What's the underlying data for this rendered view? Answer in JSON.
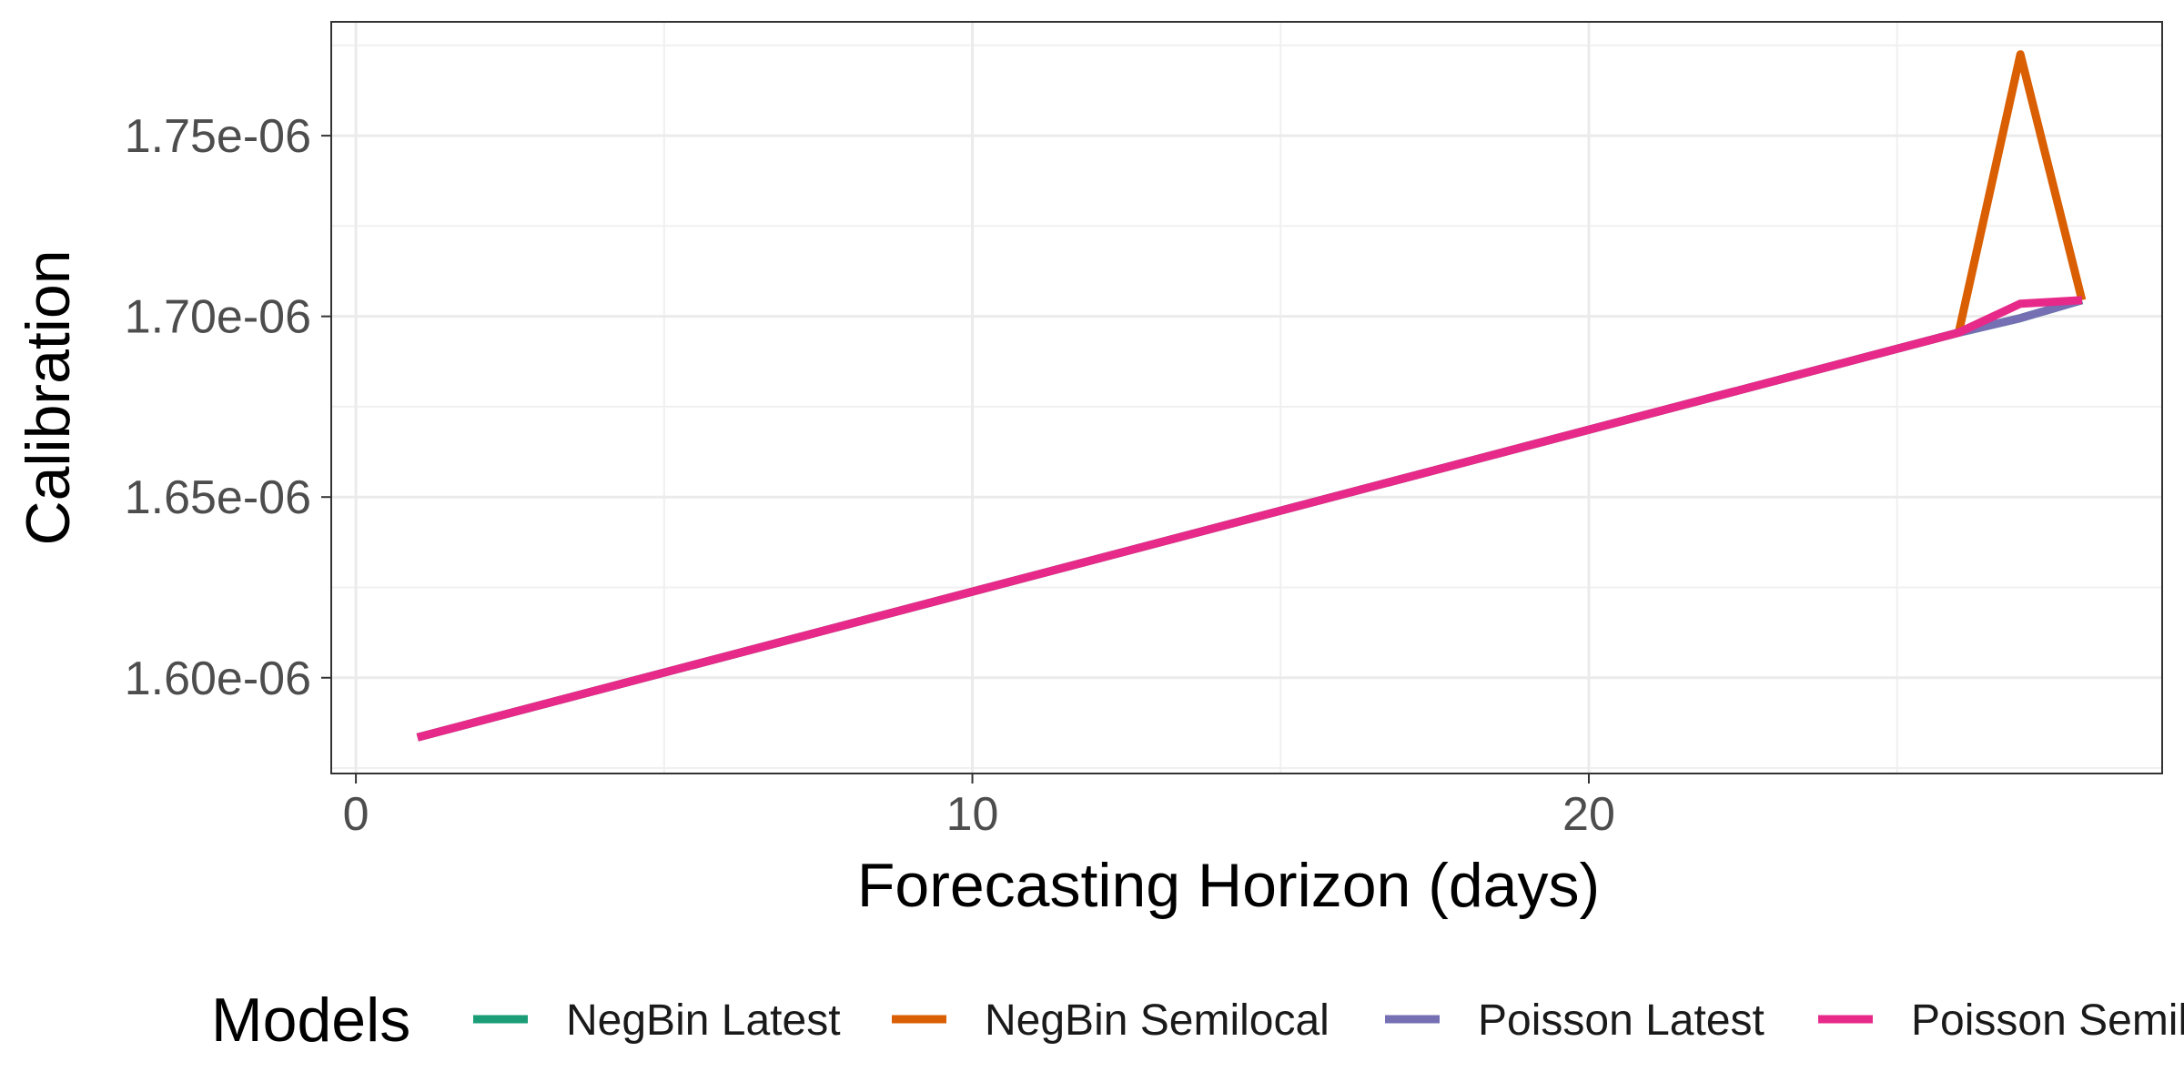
{
  "chart_data": {
    "type": "line",
    "title": "",
    "xlabel": "Forecasting Horizon (days)",
    "ylabel": "Calibration",
    "xlim": [
      -0.4,
      29.3
    ],
    "ylim": [
      1.5735e-06,
      1.7815e-06
    ],
    "x_ticks": [
      0,
      10,
      20
    ],
    "x_tick_labels": [
      "0",
      "10",
      "20"
    ],
    "y_ticks": [
      1.6e-06,
      1.65e-06,
      1.7e-06,
      1.75e-06
    ],
    "y_tick_labels": [
      "1.60e-06",
      "1.65e-06",
      "1.70e-06",
      "1.75e-06"
    ],
    "grid": true,
    "legend": {
      "title": "Models",
      "position": "bottom"
    },
    "series": [
      {
        "name": "NegBin Latest",
        "color": "#1b9e77",
        "x": [
          1,
          26,
          27,
          28
        ],
        "y": [
          1.5835e-06,
          1.6955e-06,
          1.6995e-06,
          1.7045e-06
        ]
      },
      {
        "name": "NegBin Semilocal",
        "color": "#d95f02",
        "x": [
          1,
          26,
          27,
          28
        ],
        "y": [
          1.5835e-06,
          1.6955e-06,
          1.7725e-06,
          1.7045e-06
        ]
      },
      {
        "name": "Poisson Latest",
        "color": "#7570b3",
        "x": [
          1,
          26,
          27,
          28
        ],
        "y": [
          1.5835e-06,
          1.6955e-06,
          1.6995e-06,
          1.7045e-06
        ]
      },
      {
        "name": "Poisson Semilocal",
        "color": "#e7298a",
        "x": [
          1,
          26,
          27,
          28
        ],
        "y": [
          1.5835e-06,
          1.6955e-06,
          1.7035e-06,
          1.7045e-06
        ]
      }
    ]
  }
}
